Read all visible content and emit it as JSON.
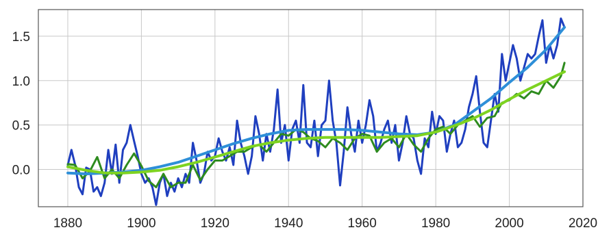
{
  "chart_data": {
    "type": "line",
    "title": "",
    "xlabel": "",
    "ylabel": "",
    "xlim": [
      1872,
      2020
    ],
    "ylim": [
      -0.42,
      1.8
    ],
    "grid": true,
    "legend": "none",
    "x_ticks": [
      1880,
      1900,
      1920,
      1940,
      1960,
      1980,
      2000,
      2020
    ],
    "y_ticks": [
      0.0,
      0.5,
      1.0,
      1.5
    ],
    "x_tick_labels": [
      "1880",
      "1900",
      "1920",
      "1940",
      "1960",
      "1980",
      "2000",
      "2020"
    ],
    "y_tick_labels": [
      "0.0",
      "0.5",
      "1.0",
      "1.5"
    ],
    "series": [
      {
        "color": "#1f3fbf",
        "width": 3,
        "x": [
          1880,
          1881,
          1882,
          1883,
          1884,
          1885,
          1886,
          1887,
          1888,
          1889,
          1890,
          1891,
          1892,
          1893,
          1894,
          1895,
          1896,
          1897,
          1898,
          1899,
          1900,
          1901,
          1902,
          1903,
          1904,
          1905,
          1906,
          1907,
          1908,
          1909,
          1910,
          1911,
          1912,
          1913,
          1914,
          1915,
          1916,
          1917,
          1918,
          1919,
          1920,
          1921,
          1922,
          1923,
          1924,
          1925,
          1926,
          1927,
          1928,
          1929,
          1930,
          1931,
          1932,
          1933,
          1934,
          1935,
          1936,
          1937,
          1938,
          1939,
          1940,
          1941,
          1942,
          1943,
          1944,
          1945,
          1946,
          1947,
          1948,
          1949,
          1950,
          1951,
          1952,
          1953,
          1954,
          1955,
          1956,
          1957,
          1958,
          1959,
          1960,
          1961,
          1962,
          1963,
          1964,
          1965,
          1966,
          1967,
          1968,
          1969,
          1970,
          1971,
          1972,
          1973,
          1974,
          1975,
          1976,
          1977,
          1978,
          1979,
          1980,
          1981,
          1982,
          1983,
          1984,
          1985,
          1986,
          1987,
          1988,
          1989,
          1990,
          1991,
          1992,
          1993,
          1994,
          1995,
          1996,
          1997,
          1998,
          1999,
          2000,
          2001,
          2002,
          2003,
          2004,
          2005,
          2006,
          2007,
          2008,
          2009,
          2010,
          2011,
          2012,
          2013,
          2014,
          2015
        ],
        "y": [
          0.05,
          0.22,
          0.05,
          -0.2,
          -0.28,
          0.02,
          0.0,
          -0.25,
          -0.2,
          -0.3,
          -0.15,
          0.22,
          -0.05,
          0.28,
          -0.15,
          0.22,
          0.3,
          0.5,
          0.32,
          0.15,
          -0.05,
          -0.15,
          -0.1,
          -0.2,
          -0.4,
          -0.15,
          -0.05,
          -0.3,
          -0.15,
          -0.25,
          -0.1,
          -0.2,
          -0.05,
          -0.15,
          0.3,
          0.1,
          -0.15,
          -0.05,
          0.2,
          0.1,
          0.15,
          0.35,
          0.2,
          0.1,
          0.25,
          0.05,
          0.55,
          0.3,
          0.15,
          -0.05,
          0.15,
          0.6,
          0.4,
          0.1,
          0.4,
          0.2,
          0.45,
          0.9,
          0.3,
          0.5,
          0.1,
          0.45,
          0.55,
          0.3,
          0.95,
          0.3,
          0.25,
          0.55,
          0.15,
          0.5,
          0.55,
          1.0,
          0.55,
          0.3,
          -0.18,
          0.2,
          0.7,
          0.4,
          0.2,
          0.55,
          0.3,
          0.5,
          0.78,
          0.6,
          0.2,
          0.3,
          0.45,
          0.55,
          0.3,
          0.5,
          0.1,
          0.3,
          0.6,
          0.4,
          0.35,
          0.1,
          -0.05,
          0.35,
          0.25,
          0.65,
          0.4,
          0.6,
          0.55,
          0.2,
          0.4,
          0.55,
          0.25,
          0.3,
          0.45,
          0.7,
          0.85,
          1.05,
          0.65,
          0.3,
          0.25,
          0.55,
          0.85,
          0.65,
          1.3,
          1.0,
          1.2,
          1.4,
          1.25,
          1.0,
          1.15,
          1.3,
          1.25,
          1.3,
          1.5,
          1.68,
          1.2,
          1.4,
          1.25,
          1.4,
          1.7,
          1.6
        ],
        "data_name_prefix": "blue-annual-point"
      },
      {
        "color": "#2e8b1e",
        "width": 3,
        "x": [
          1880,
          1882,
          1884,
          1886,
          1888,
          1890,
          1892,
          1894,
          1896,
          1898,
          1900,
          1902,
          1904,
          1906,
          1908,
          1910,
          1912,
          1914,
          1916,
          1918,
          1920,
          1922,
          1924,
          1926,
          1928,
          1930,
          1932,
          1934,
          1936,
          1938,
          1940,
          1942,
          1944,
          1946,
          1948,
          1950,
          1952,
          1954,
          1956,
          1958,
          1960,
          1962,
          1964,
          1966,
          1968,
          1970,
          1972,
          1974,
          1976,
          1978,
          1980,
          1982,
          1984,
          1986,
          1988,
          1990,
          1992,
          1994,
          1996,
          1998,
          2000,
          2002,
          2004,
          2006,
          2008,
          2010,
          2012,
          2014,
          2015
        ],
        "y": [
          0.06,
          0.05,
          -0.1,
          -0.02,
          0.14,
          -0.1,
          0.0,
          -0.1,
          0.05,
          0.18,
          0.04,
          -0.13,
          -0.2,
          -0.05,
          -0.2,
          -0.15,
          -0.15,
          0.05,
          -0.12,
          0.0,
          0.1,
          0.1,
          0.15,
          0.2,
          0.2,
          0.25,
          0.28,
          0.2,
          0.3,
          0.4,
          0.38,
          0.45,
          0.42,
          0.35,
          0.32,
          0.25,
          0.35,
          0.3,
          0.22,
          0.35,
          0.4,
          0.38,
          0.2,
          0.3,
          0.35,
          0.25,
          0.4,
          0.28,
          0.2,
          0.35,
          0.45,
          0.48,
          0.4,
          0.5,
          0.55,
          0.6,
          0.48,
          0.58,
          0.6,
          0.75,
          0.78,
          0.85,
          0.8,
          0.88,
          0.85,
          1.0,
          0.92,
          1.05,
          1.2
        ],
        "data_name_prefix": "green-smoothed-point"
      },
      {
        "color": "#2e8fd8",
        "width": 4,
        "x": [
          1880,
          1885,
          1890,
          1895,
          1900,
          1905,
          1910,
          1915,
          1920,
          1925,
          1930,
          1935,
          1940,
          1945,
          1950,
          1955,
          1960,
          1965,
          1970,
          1975,
          1980,
          1985,
          1990,
          1995,
          2000,
          2005,
          2010,
          2015
        ],
        "y": [
          -0.04,
          -0.05,
          -0.04,
          -0.03,
          -0.01,
          0.03,
          0.08,
          0.15,
          0.22,
          0.29,
          0.35,
          0.4,
          0.44,
          0.45,
          0.45,
          0.45,
          0.44,
          0.42,
          0.4,
          0.39,
          0.42,
          0.5,
          0.65,
          0.8,
          0.98,
          1.15,
          1.35,
          1.6
        ],
        "data_name_prefix": "blue-trend-point"
      },
      {
        "color": "#7ed321",
        "width": 4,
        "x": [
          1880,
          1885,
          1890,
          1895,
          1900,
          1905,
          1910,
          1915,
          1920,
          1925,
          1930,
          1935,
          1940,
          1945,
          1950,
          1955,
          1960,
          1965,
          1970,
          1975,
          1980,
          1985,
          1990,
          1995,
          2000,
          2005,
          2010,
          2015
        ],
        "y": [
          0.03,
          -0.01,
          -0.04,
          -0.04,
          -0.03,
          -0.01,
          0.03,
          0.08,
          0.14,
          0.2,
          0.26,
          0.3,
          0.33,
          0.35,
          0.36,
          0.36,
          0.36,
          0.36,
          0.37,
          0.38,
          0.42,
          0.49,
          0.57,
          0.67,
          0.79,
          0.9,
          1.0,
          1.1
        ],
        "data_name_prefix": "green-trend-point"
      }
    ]
  }
}
